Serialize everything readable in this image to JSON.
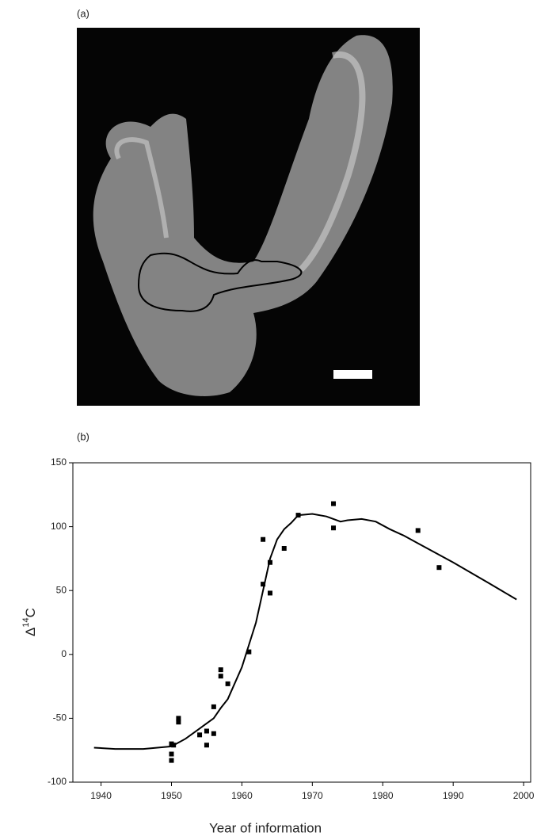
{
  "panels": [
    "(a)",
    "(b)"
  ],
  "chart_data": {
    "type": "scatter",
    "x_label": "Year of information",
    "y_label": "Δ14C",
    "xlim": [
      1936,
      2001
    ],
    "xticks": [
      1940,
      1950,
      1960,
      1970,
      1980,
      1990,
      2000
    ],
    "ylim": [
      -100,
      150
    ],
    "yticks": [
      -100,
      -50,
      0,
      50,
      100,
      150
    ],
    "grid": false,
    "series": [
      {
        "kind": "markers",
        "color": "#000000",
        "x": [
          1950,
          1950,
          1950,
          1950.3,
          1951,
          1951,
          1954,
          1955,
          1955,
          1956,
          1956,
          1957,
          1957,
          1958,
          1961,
          1963,
          1963,
          1964,
          1964,
          1966,
          1968,
          1973,
          1973,
          1985,
          1988
        ],
        "values": [
          -70,
          -78,
          -83,
          -71,
          -50,
          -53,
          -63,
          -60,
          -71,
          -62,
          -41,
          -12,
          -17,
          -23,
          2,
          90,
          55,
          72,
          48,
          83,
          109,
          118,
          99,
          97,
          68
        ]
      },
      {
        "kind": "line",
        "color": "#000000",
        "x": [
          1939,
          1942,
          1946,
          1950,
          1952,
          1954,
          1956,
          1957,
          1958,
          1960,
          1962,
          1963,
          1964,
          1965,
          1966,
          1967,
          1968,
          1970,
          1972,
          1974,
          1975,
          1977,
          1979,
          1981,
          1983,
          1985,
          1990,
          1995,
          1999
        ],
        "values": [
          -73,
          -74,
          -74,
          -72,
          -66,
          -58,
          -50,
          -42,
          -35,
          -10,
          25,
          50,
          75,
          90,
          98,
          103,
          109,
          110,
          108,
          104,
          105,
          106,
          104,
          98,
          93,
          87,
          72,
          56,
          43
        ]
      }
    ]
  }
}
